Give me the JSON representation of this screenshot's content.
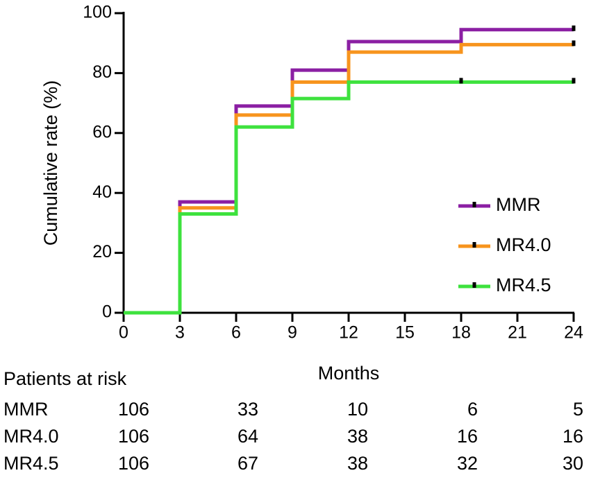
{
  "chart_data": {
    "type": "step",
    "x_label": "Months",
    "y_label": "Cumulative rate (%)",
    "x": [
      0,
      3,
      6,
      9,
      12,
      18,
      24
    ],
    "xlim": [
      0,
      24
    ],
    "xticks": [
      0,
      3,
      6,
      9,
      12,
      15,
      18,
      21,
      24
    ],
    "ylim": [
      0,
      100
    ],
    "yticks": [
      0,
      20,
      40,
      60,
      80,
      100
    ],
    "legend": "lower right",
    "series": [
      {
        "name": "MMR",
        "color": "#8b1fa3",
        "values": [
          0,
          37,
          69,
          81,
          90.5,
          94.5,
          94.5
        ],
        "censored_x": [
          24
        ]
      },
      {
        "name": "MR4.0",
        "color": "#f7941d",
        "values": [
          0,
          35,
          66,
          77,
          87,
          89.5,
          89.5
        ],
        "censored_x": [
          24
        ]
      },
      {
        "name": "MR4.5",
        "color": "#3ee23e",
        "values": [
          0,
          33,
          62,
          71.5,
          77,
          77,
          77
        ],
        "censored_x": [
          18,
          24
        ]
      }
    ],
    "risk_table": {
      "title": "Patients at risk",
      "rows": [
        {
          "name": "MMR",
          "values": [
            106,
            33,
            10,
            6,
            5
          ]
        },
        {
          "name": "MR4.0",
          "values": [
            106,
            64,
            38,
            16,
            16
          ]
        },
        {
          "name": "MR4.5",
          "values": [
            106,
            67,
            38,
            32,
            30
          ]
        }
      ]
    }
  }
}
